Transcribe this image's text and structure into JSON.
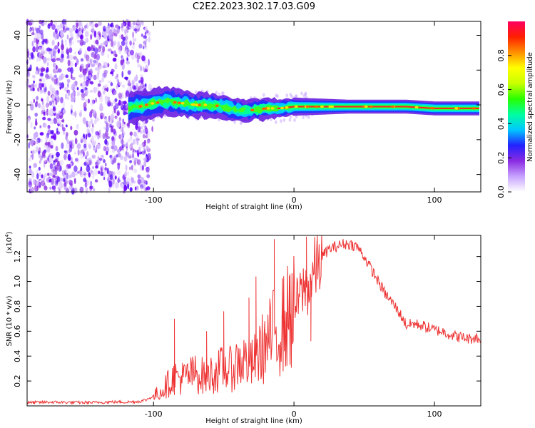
{
  "title": "C2E2.2023.302.17.03.G09",
  "chart_data": [
    {
      "type": "heatmap",
      "name": "spectrogram",
      "xlabel": "Height of straight line (km)",
      "ylabel": "Frequency (Hz)",
      "xlim": [
        -190,
        133
      ],
      "ylim": [
        -50,
        48
      ],
      "xticks": [
        -100,
        0,
        100
      ],
      "yticks": [
        -40,
        -20,
        0,
        20,
        40
      ],
      "noise_region_x": [
        -190,
        -103
      ],
      "signal_start_x": -118,
      "ridge": [
        {
          "x": -118,
          "y": -2
        },
        {
          "x": -110,
          "y": -1
        },
        {
          "x": -100,
          "y": 1
        },
        {
          "x": -90,
          "y": 2
        },
        {
          "x": -80,
          "y": 1
        },
        {
          "x": -70,
          "y": 0
        },
        {
          "x": -60,
          "y": 0
        },
        {
          "x": -50,
          "y": -1
        },
        {
          "x": -40,
          "y": -3
        },
        {
          "x": -30,
          "y": -3
        },
        {
          "x": -20,
          "y": -2
        },
        {
          "x": -10,
          "y": -2
        },
        {
          "x": 0,
          "y": -1
        },
        {
          "x": 20,
          "y": -1
        },
        {
          "x": 50,
          "y": -1
        },
        {
          "x": 80,
          "y": -1
        },
        {
          "x": 100,
          "y": -2
        },
        {
          "x": 133,
          "y": -2
        }
      ],
      "colorbar": {
        "label": "Normalized spectral amplitude",
        "range": [
          0,
          1
        ],
        "ticks": [
          "0.0",
          "0.2",
          "0.4",
          "0.6",
          "0.8"
        ],
        "colors": [
          "#ffffff",
          "#c7a2ff",
          "#8a2be2",
          "#2222ff",
          "#00c8ff",
          "#00ffa0",
          "#28ff00",
          "#c8ff00",
          "#ffff00",
          "#ff9000",
          "#ff2000",
          "#ff0060"
        ]
      }
    },
    {
      "type": "line",
      "name": "snr",
      "xlabel": "Height of straight line (km)",
      "ylabel": "SNR (10 * v/v)",
      "scale_label": "(x10",
      "scale_exp": "4",
      "scale_close": ")",
      "xlim": [
        -190,
        133
      ],
      "ylim": [
        0,
        13700
      ],
      "xticks": [
        -100,
        0,
        100
      ],
      "yticks": [
        2000,
        4000,
        6000,
        8000,
        10000,
        12000
      ],
      "ytick_labels": [
        "0.2",
        "0.4",
        "0.6",
        "0.8",
        "1.0",
        "1.2"
      ],
      "color": "#ee3333",
      "series": {
        "x": [
          -190,
          -175,
          -160,
          -145,
          -130,
          -120,
          -110,
          -105,
          -100,
          -95,
          -90,
          -85,
          -80,
          -75,
          -70,
          -65,
          -60,
          -55,
          -50,
          -45,
          -40,
          -35,
          -30,
          -25,
          -20,
          -15,
          -10,
          -5,
          0,
          5,
          8,
          10,
          15,
          20,
          25,
          30,
          35,
          40,
          45,
          50,
          55,
          60,
          65,
          70,
          75,
          80,
          85,
          90,
          95,
          100,
          105,
          110,
          115,
          120,
          125,
          130,
          133
        ],
        "y": [
          250,
          300,
          280,
          260,
          320,
          300,
          350,
          500,
          800,
          1200,
          1800,
          2400,
          2300,
          2500,
          2700,
          2500,
          2600,
          2800,
          3200,
          3000,
          3600,
          3800,
          3400,
          4500,
          5000,
          6000,
          6500,
          7200,
          7800,
          9000,
          9600,
          9400,
          11000,
          12000,
          12600,
          12800,
          13000,
          13000,
          12800,
          12000,
          11000,
          10000,
          9000,
          8300,
          7500,
          6500,
          6600,
          6500,
          6300,
          6100,
          6000,
          5800,
          5600,
          5500,
          5400,
          5500,
          5200
        ]
      },
      "spikes": [
        {
          "x": -85,
          "y": 7000
        },
        {
          "x": -62,
          "y": 6000
        },
        {
          "x": -50,
          "y": 7600
        },
        {
          "x": -32,
          "y": 8700
        },
        {
          "x": -27,
          "y": 10400
        },
        {
          "x": -14,
          "y": 13400
        },
        {
          "x": -3,
          "y": 10600
        },
        {
          "x": 9,
          "y": 13600
        },
        {
          "x": 12,
          "y": 5200
        }
      ]
    }
  ]
}
